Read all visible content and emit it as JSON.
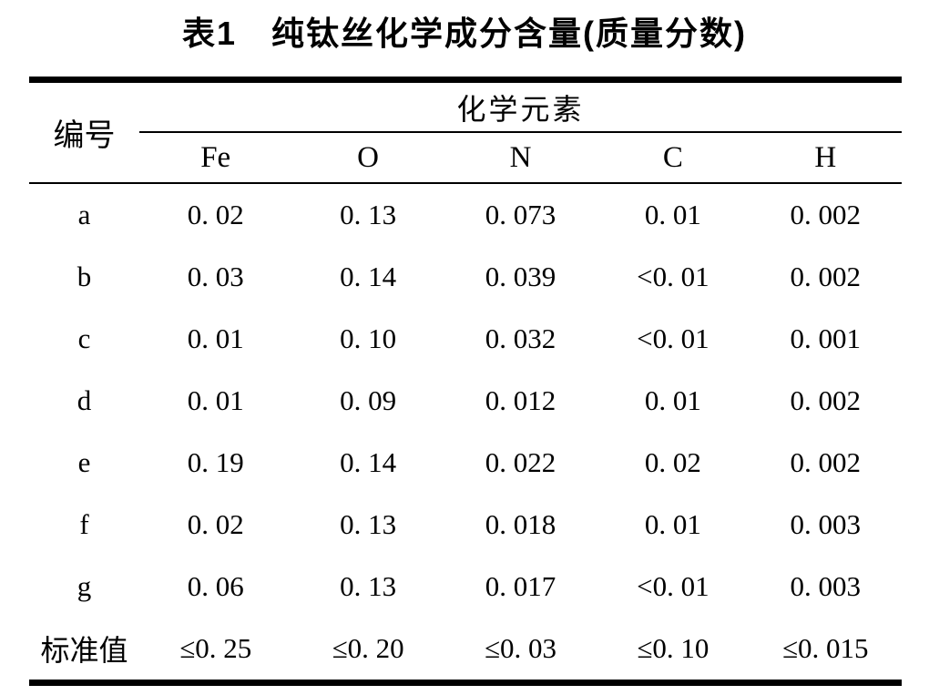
{
  "title": "表1　纯钛丝化学成分含量(质量分数)",
  "colors": {
    "text": "#000000",
    "background": "#ffffff",
    "rule": "#000000"
  },
  "table": {
    "corner_header": "编号",
    "group_header": "化学元素",
    "element_headers": [
      "Fe",
      "O",
      "N",
      "C",
      "H"
    ],
    "rows": [
      {
        "label": "a",
        "cells": [
          "0. 02",
          "0. 13",
          "0. 073",
          "0. 01",
          "0. 002"
        ]
      },
      {
        "label": "b",
        "cells": [
          "0. 03",
          "0. 14",
          "0. 039",
          "<0. 01",
          "0. 002"
        ]
      },
      {
        "label": "c",
        "cells": [
          "0. 01",
          "0. 10",
          "0. 032",
          "<0. 01",
          "0. 001"
        ]
      },
      {
        "label": "d",
        "cells": [
          "0. 01",
          "0. 09",
          "0. 012",
          "0. 01",
          "0. 002"
        ]
      },
      {
        "label": "e",
        "cells": [
          "0. 19",
          "0. 14",
          "0. 022",
          "0. 02",
          "0. 002"
        ]
      },
      {
        "label": "f",
        "cells": [
          "0. 02",
          "0. 13",
          "0. 018",
          "0. 01",
          "0. 003"
        ]
      },
      {
        "label": "g",
        "cells": [
          "0. 06",
          "0. 13",
          "0. 017",
          "<0. 01",
          "0. 003"
        ]
      },
      {
        "label": "标准值",
        "cells": [
          "≤0. 25",
          "≤0. 20",
          "≤0. 03",
          "≤0. 10",
          "≤0. 015"
        ]
      }
    ]
  }
}
